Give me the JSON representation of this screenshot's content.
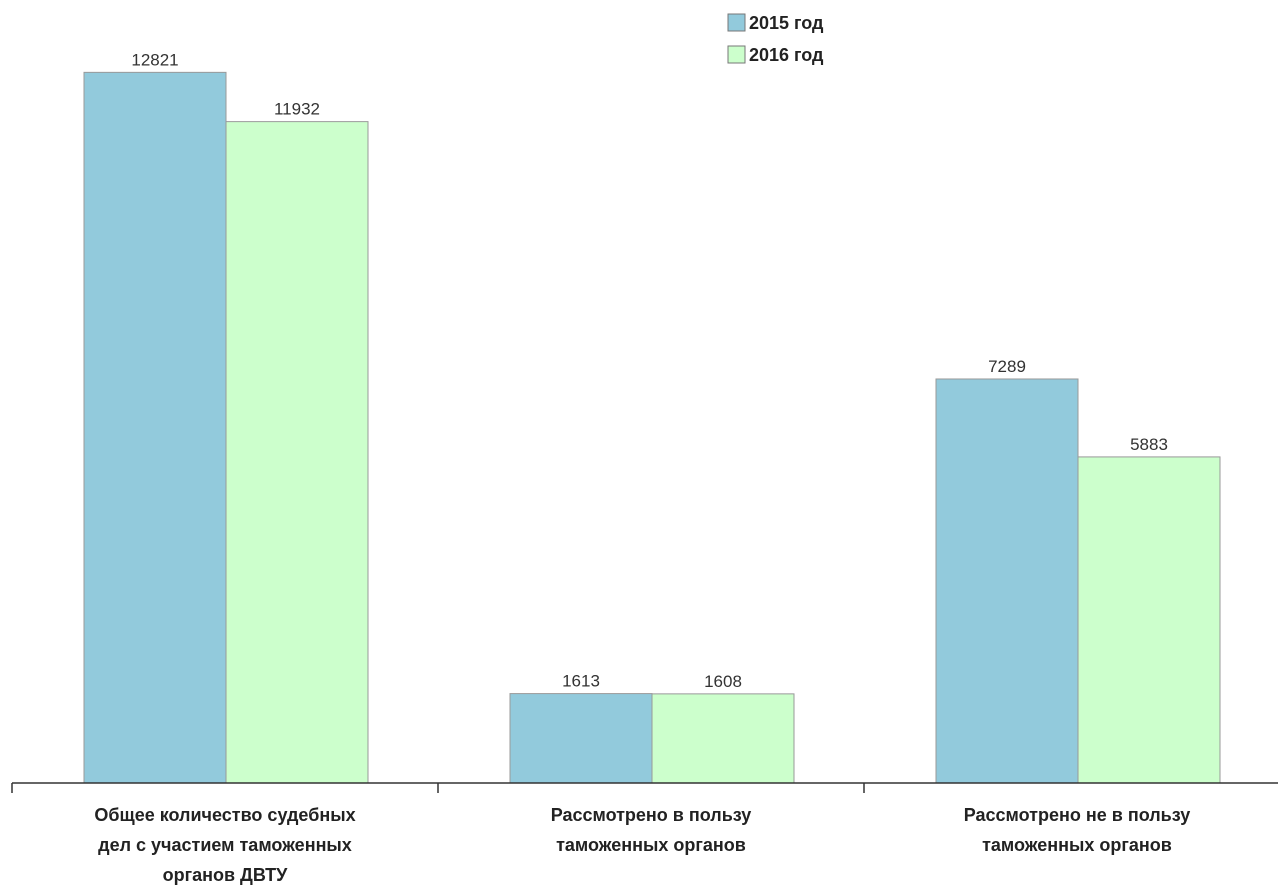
{
  "chart_data": {
    "type": "bar",
    "categories": [
      "Общее количество судебных\nдел с участием таможенных\nорганов ДВТУ",
      "Рассмотрено в пользу\nтаможенных органов",
      "Рассмотрено не в пользу\nтаможенных органов"
    ],
    "series": [
      {
        "name": "2015 год",
        "color": "#92cadc",
        "values": [
          12821,
          1613,
          7289
        ]
      },
      {
        "name": "2016 год",
        "color": "#ccffcc",
        "values": [
          11932,
          1608,
          5883
        ]
      }
    ],
    "ylim": [
      0,
      14000
    ],
    "legend": "top"
  }
}
